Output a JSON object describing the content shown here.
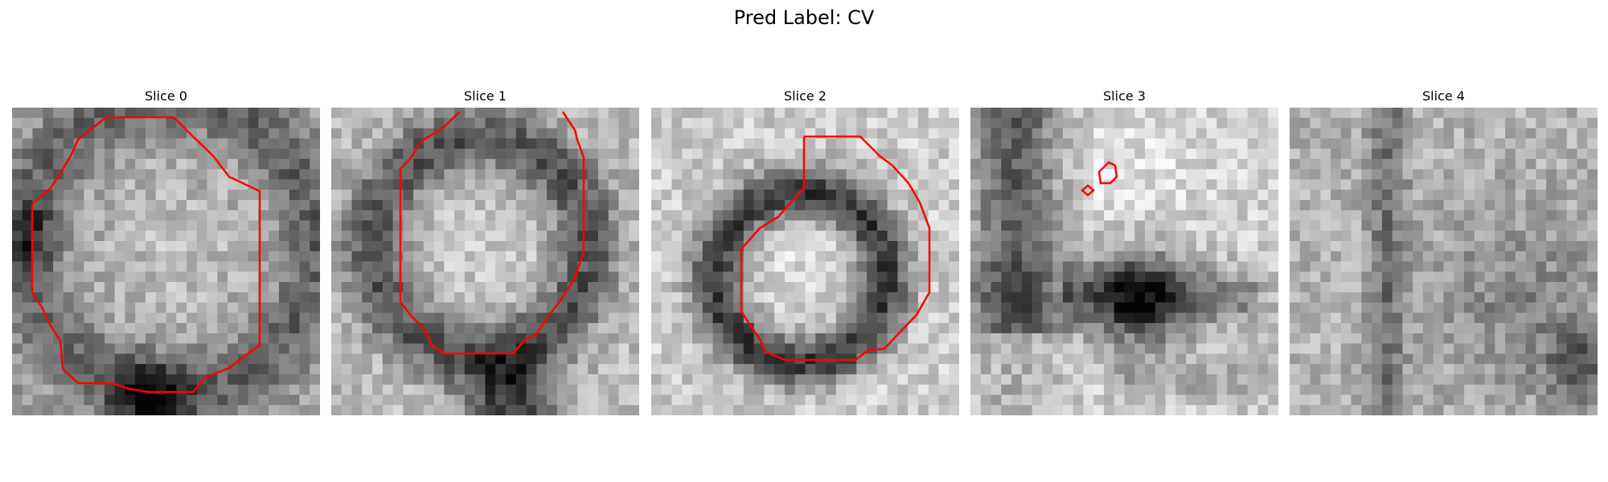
{
  "figure": {
    "title": "Pred Label: CV"
  },
  "panels": [
    {
      "title": "Slice 0"
    },
    {
      "title": "Slice 1"
    },
    {
      "title": "Slice 2"
    },
    {
      "title": "Slice 3"
    },
    {
      "title": "Slice 4"
    }
  ],
  "colors": {
    "contour": "#ff0000",
    "background": "#ffffff"
  },
  "colormap": "gray"
}
